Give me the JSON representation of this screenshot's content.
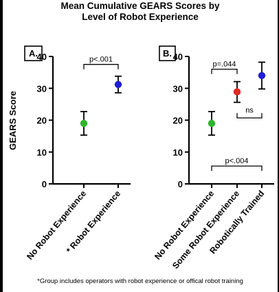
{
  "title_line1": "Mean Cumulative GEARS Scores by",
  "title_line2": "Level of Robot Experience",
  "ylabel": "GEARS Score",
  "footnote_marker": "*",
  "footnote_text": "Group includes operators with robot experience or offical robot training",
  "colors": {
    "green": "#2db52d",
    "blue": "#1f1fd1",
    "red": "#e6261f",
    "ink": "#000000"
  },
  "chart_data": [
    {
      "type": "scatter",
      "panel_label": "A.",
      "ylabel": "GEARS Score",
      "ylim": [
        0,
        40
      ],
      "yticks": [
        0,
        10,
        20,
        30,
        40
      ],
      "categories": [
        "No Robot Experience",
        "* Robot Experience"
      ],
      "points": [
        {
          "category": "No Robot Experience",
          "mean": 19,
          "lower": 15.3,
          "upper": 22.7,
          "color": "green"
        },
        {
          "category": "* Robot Experience",
          "mean": 31.2,
          "lower": 28.6,
          "upper": 33.8,
          "color": "blue"
        }
      ],
      "annotations": [
        {
          "label": "p<.001",
          "from": 0,
          "to": 1,
          "level": 37.5,
          "side": "above"
        }
      ]
    },
    {
      "type": "scatter",
      "panel_label": "B.",
      "ylim": [
        0,
        40
      ],
      "yticks": [
        0,
        10,
        20,
        30,
        40
      ],
      "categories": [
        "No Robot Experience",
        "Some Robot Experience",
        "Robotically Trained"
      ],
      "points": [
        {
          "category": "No Robot Experience",
          "mean": 19,
          "lower": 15.3,
          "upper": 22.7,
          "color": "green"
        },
        {
          "category": "Some Robot Experience",
          "mean": 28.9,
          "lower": 25.6,
          "upper": 32.1,
          "color": "red"
        },
        {
          "category": "Robotically Trained",
          "mean": 34,
          "lower": 29.8,
          "upper": 38.2,
          "color": "blue"
        }
      ],
      "annotations": [
        {
          "label": "p=.044",
          "from": 0,
          "to": 1,
          "level": 36,
          "side": "above"
        },
        {
          "label": "ns",
          "from": 1,
          "to": 2,
          "level": 20.7,
          "side": "below"
        },
        {
          "label": "p<.004",
          "from": 0,
          "to": 2,
          "level": 5.6,
          "side": "above"
        }
      ]
    }
  ]
}
